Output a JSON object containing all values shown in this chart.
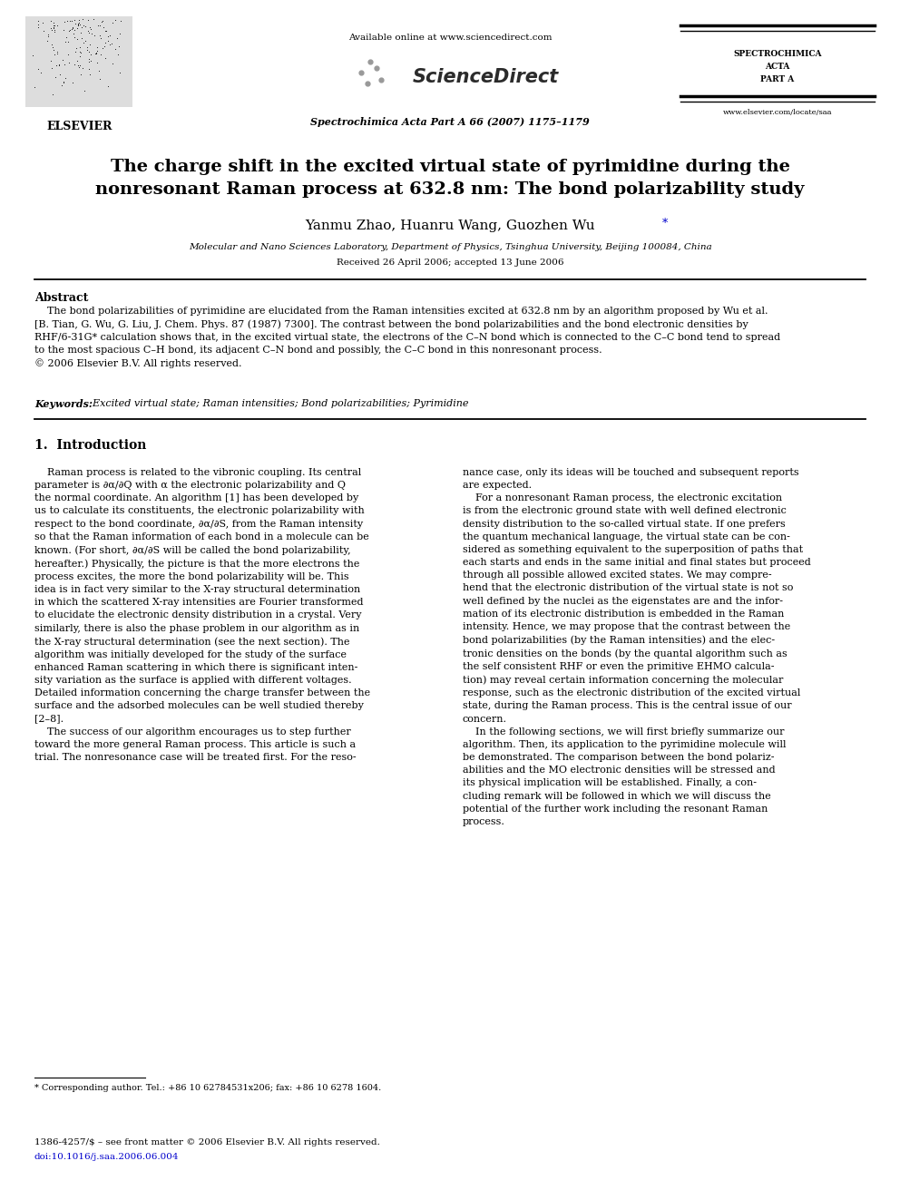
{
  "bg_color": "#ffffff",
  "page_width": 9.92,
  "page_height": 13.23,
  "header_available": "Available online at www.sciencedirect.com",
  "header_sciencedirect": "ScienceDirect",
  "header_journal_bold": "Spectrochimica Acta Part A 66 (2007) 1175–1179",
  "header_spectrochimica1": "SPECTROCHIMICA",
  "header_spectrochimica2": "ACTA",
  "header_spectrochimica3": "PART A",
  "header_website": "www.elsevier.com/locate/saa",
  "elsevier_label": "ELSEVIER",
  "title_line1": "The charge shift in the excited virtual state of pyrimidine during the",
  "title_line2": "nonresonant Raman process at 632.8 nm: The bond polarizability study",
  "authors": "Yanmu Zhao, Huanru Wang, Guozhen Wu",
  "affiliation": "Molecular and Nano Sciences Laboratory, Department of Physics, Tsinghua University, Beijing 100084, China",
  "received": "Received 26 April 2006; accepted 13 June 2006",
  "abstract_title": "Abstract",
  "abstract_body": "    The bond polarizabilities of pyrimidine are elucidated from the Raman intensities excited at 632.8 nm by an algorithm proposed by Wu et al.\n[B. Tian, G. Wu, G. Liu, J. Chem. Phys. 87 (1987) 7300]. The contrast between the bond polarizabilities and the bond electronic densities by\nRHF/6-31G* calculation shows that, in the excited virtual state, the electrons of the C–N bond which is connected to the C–C bond tend to spread\nto the most spacious C–H bond, its adjacent C–N bond and possibly, the C–C bond in this nonresonant process.\n© 2006 Elsevier B.V. All rights reserved.",
  "keywords_bold": "Keywords:",
  "keywords_rest": "  Excited virtual state; Raman intensities; Bond polarizabilities; Pyrimidine",
  "sec1_title": "1.  Introduction",
  "col1_text": "    Raman process is related to the vibronic coupling. Its central\nparameter is ∂α/∂Q with α the electronic polarizability and Q\nthe normal coordinate. An algorithm [1] has been developed by\nus to calculate its constituents, the electronic polarizability with\nrespect to the bond coordinate, ∂α/∂S, from the Raman intensity\nso that the Raman information of each bond in a molecule can be\nknown. (For short, ∂α/∂S will be called the bond polarizability,\nhereafter.) Physically, the picture is that the more electrons the\nprocess excites, the more the bond polarizability will be. This\nidea is in fact very similar to the X-ray structural determination\nin which the scattered X-ray intensities are Fourier transformed\nto elucidate the electronic density distribution in a crystal. Very\nsimilarly, there is also the phase problem in our algorithm as in\nthe X-ray structural determination (see the next section). The\nalgorithm was initially developed for the study of the surface\nenhanced Raman scattering in which there is significant inten-\nsity variation as the surface is applied with different voltages.\nDetailed information concerning the charge transfer between the\nsurface and the adsorbed molecules can be well studied thereby\n[2–8].\n    The success of our algorithm encourages us to step further\ntoward the more general Raman process. This article is such a\ntrial. The nonresonance case will be treated first. For the reso-",
  "col2_text": "nance case, only its ideas will be touched and subsequent reports\nare expected.\n    For a nonresonant Raman process, the electronic excitation\nis from the electronic ground state with well defined electronic\ndensity distribution to the so-called virtual state. If one prefers\nthe quantum mechanical language, the virtual state can be con-\nsidered as something equivalent to the superposition of paths that\neach starts and ends in the same initial and final states but proceed\nthrough all possible allowed excited states. We may compre-\nhend that the electronic distribution of the virtual state is not so\nwell defined by the nuclei as the eigenstates are and the infor-\nmation of its electronic distribution is embedded in the Raman\nintensity. Hence, we may propose that the contrast between the\nbond polarizabilities (by the Raman intensities) and the elec-\ntronic densities on the bonds (by the quantal algorithm such as\nthe self consistent RHF or even the primitive EHMO calcula-\ntion) may reveal certain information concerning the molecular\nresponse, such as the electronic distribution of the excited virtual\nstate, during the Raman process. This is the central issue of our\nconcern.\n    In the following sections, we will first briefly summarize our\nalgorithm. Then, its application to the pyrimidine molecule will\nbe demonstrated. The comparison between the bond polariz-\nabilities and the MO electronic densities will be stressed and\nits physical implication will be established. Finally, a con-\ncluding remark will be followed in which we will discuss the\npotential of the further work including the resonant Raman\nprocess.",
  "footnote_line": "* Corresponding author. Tel.: +86 10 62784531x206; fax: +86 10 6278 1604.",
  "footer1": "1386-4257/$ – see front matter © 2006 Elsevier B.V. All rights reserved.",
  "footer2": "doi:10.1016/j.saa.2006.06.004",
  "blue_color": "#0000cc",
  "black": "#000000",
  "gray_med": "#888888"
}
